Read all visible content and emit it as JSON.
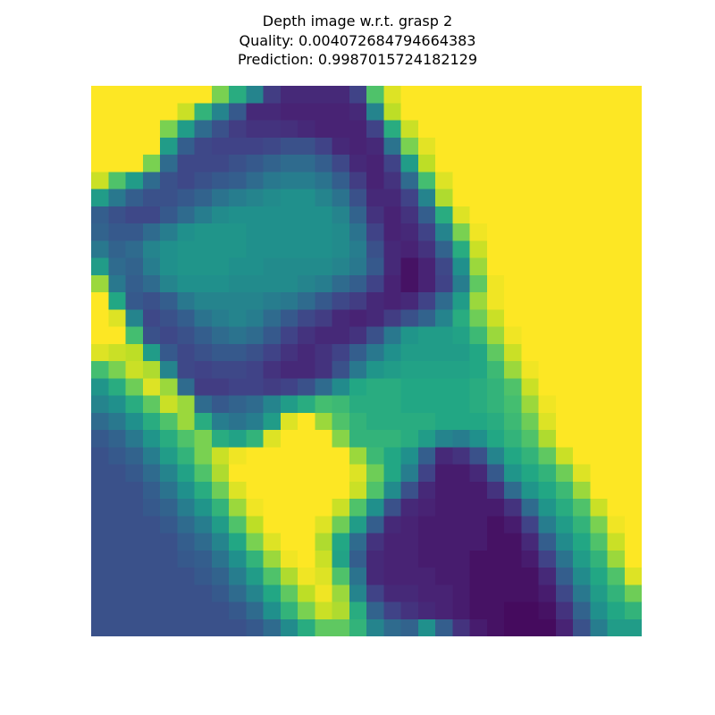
{
  "chart_data": {
    "type": "heatmap",
    "title_lines": [
      "Depth image w.r.t. grasp 2",
      "Quality: 0.004072684794664383",
      "Prediction: 0.9987015724182129"
    ],
    "axes": "off",
    "colormap": "viridis",
    "rows": 32,
    "cols": 32,
    "value_range": [
      0,
      1
    ],
    "grid": [
      [
        1.0,
        1.0,
        1.0,
        1.0,
        1.0,
        1.0,
        1.0,
        0.8,
        0.62,
        0.45,
        0.18,
        0.12,
        0.12,
        0.12,
        0.12,
        0.2,
        0.72,
        0.95,
        1.0,
        1.0,
        1.0,
        1.0,
        1.0,
        1.0,
        1.0,
        1.0,
        1.0,
        1.0,
        1.0,
        1.0,
        1.0,
        1.0
      ],
      [
        1.0,
        1.0,
        1.0,
        1.0,
        1.0,
        0.92,
        0.65,
        0.45,
        0.28,
        0.12,
        0.12,
        0.1,
        0.1,
        0.1,
        0.1,
        0.12,
        0.45,
        0.9,
        1.0,
        1.0,
        1.0,
        1.0,
        1.0,
        1.0,
        1.0,
        1.0,
        1.0,
        1.0,
        1.0,
        1.0,
        1.0,
        1.0
      ],
      [
        1.0,
        1.0,
        1.0,
        1.0,
        0.8,
        0.55,
        0.35,
        0.25,
        0.18,
        0.15,
        0.15,
        0.14,
        0.12,
        0.1,
        0.1,
        0.1,
        0.2,
        0.62,
        0.92,
        1.0,
        1.0,
        1.0,
        1.0,
        1.0,
        1.0,
        1.0,
        1.0,
        1.0,
        1.0,
        1.0,
        1.0,
        1.0
      ],
      [
        1.0,
        1.0,
        1.0,
        1.0,
        0.55,
        0.3,
        0.22,
        0.2,
        0.2,
        0.2,
        0.22,
        0.25,
        0.25,
        0.2,
        0.12,
        0.1,
        0.12,
        0.38,
        0.8,
        0.96,
        1.0,
        1.0,
        1.0,
        1.0,
        1.0,
        1.0,
        1.0,
        1.0,
        1.0,
        1.0,
        1.0,
        1.0
      ],
      [
        1.0,
        1.0,
        1.0,
        0.8,
        0.35,
        0.22,
        0.22,
        0.22,
        0.25,
        0.28,
        0.32,
        0.35,
        0.35,
        0.3,
        0.22,
        0.12,
        0.1,
        0.2,
        0.55,
        0.9,
        1.0,
        1.0,
        1.0,
        1.0,
        1.0,
        1.0,
        1.0,
        1.0,
        1.0,
        1.0,
        1.0,
        1.0
      ],
      [
        0.92,
        0.72,
        0.55,
        0.35,
        0.25,
        0.22,
        0.25,
        0.28,
        0.3,
        0.35,
        0.4,
        0.42,
        0.42,
        0.38,
        0.3,
        0.18,
        0.1,
        0.15,
        0.35,
        0.7,
        0.95,
        1.0,
        1.0,
        1.0,
        1.0,
        1.0,
        1.0,
        1.0,
        1.0,
        1.0,
        1.0,
        1.0
      ],
      [
        0.55,
        0.4,
        0.3,
        0.25,
        0.25,
        0.28,
        0.32,
        0.38,
        0.42,
        0.45,
        0.48,
        0.5,
        0.5,
        0.45,
        0.38,
        0.25,
        0.12,
        0.12,
        0.2,
        0.45,
        0.88,
        1.0,
        1.0,
        1.0,
        1.0,
        1.0,
        1.0,
        1.0,
        1.0,
        1.0,
        1.0,
        1.0
      ],
      [
        0.3,
        0.25,
        0.22,
        0.22,
        0.28,
        0.35,
        0.42,
        0.48,
        0.5,
        0.5,
        0.5,
        0.5,
        0.5,
        0.5,
        0.45,
        0.32,
        0.15,
        0.1,
        0.15,
        0.3,
        0.62,
        0.95,
        1.0,
        1.0,
        1.0,
        1.0,
        1.0,
        1.0,
        1.0,
        1.0,
        1.0,
        1.0
      ],
      [
        0.32,
        0.28,
        0.28,
        0.35,
        0.42,
        0.5,
        0.52,
        0.52,
        0.52,
        0.5,
        0.5,
        0.5,
        0.5,
        0.5,
        0.48,
        0.38,
        0.2,
        0.1,
        0.12,
        0.2,
        0.45,
        0.8,
        0.98,
        1.0,
        1.0,
        1.0,
        1.0,
        1.0,
        1.0,
        1.0,
        1.0,
        1.0
      ],
      [
        0.4,
        0.32,
        0.35,
        0.45,
        0.5,
        0.52,
        0.52,
        0.52,
        0.52,
        0.5,
        0.5,
        0.5,
        0.5,
        0.5,
        0.48,
        0.42,
        0.25,
        0.12,
        0.1,
        0.15,
        0.32,
        0.62,
        0.92,
        1.0,
        1.0,
        1.0,
        1.0,
        1.0,
        1.0,
        1.0,
        1.0,
        1.0
      ],
      [
        0.55,
        0.35,
        0.32,
        0.42,
        0.5,
        0.52,
        0.52,
        0.52,
        0.5,
        0.5,
        0.48,
        0.48,
        0.48,
        0.48,
        0.45,
        0.4,
        0.28,
        0.12,
        0.05,
        0.1,
        0.22,
        0.5,
        0.85,
        1.0,
        1.0,
        1.0,
        1.0,
        1.0,
        1.0,
        1.0,
        1.0,
        1.0
      ],
      [
        0.85,
        0.4,
        0.3,
        0.35,
        0.45,
        0.5,
        0.5,
        0.5,
        0.48,
        0.48,
        0.48,
        0.48,
        0.45,
        0.42,
        0.35,
        0.3,
        0.2,
        0.1,
        0.05,
        0.1,
        0.2,
        0.42,
        0.75,
        0.98,
        1.0,
        1.0,
        1.0,
        1.0,
        1.0,
        1.0,
        1.0,
        1.0
      ],
      [
        1.0,
        0.6,
        0.28,
        0.25,
        0.3,
        0.4,
        0.45,
        0.45,
        0.45,
        0.45,
        0.42,
        0.4,
        0.35,
        0.28,
        0.22,
        0.18,
        0.12,
        0.1,
        0.12,
        0.2,
        0.35,
        0.55,
        0.85,
        0.98,
        1.0,
        1.0,
        1.0,
        1.0,
        1.0,
        1.0,
        1.0,
        1.0
      ],
      [
        1.0,
        0.95,
        0.45,
        0.22,
        0.25,
        0.3,
        0.38,
        0.42,
        0.45,
        0.42,
        0.35,
        0.28,
        0.22,
        0.18,
        0.12,
        0.1,
        0.12,
        0.18,
        0.25,
        0.32,
        0.45,
        0.62,
        0.78,
        0.92,
        1.0,
        1.0,
        1.0,
        1.0,
        1.0,
        1.0,
        1.0,
        1.0
      ],
      [
        1.0,
        1.0,
        0.7,
        0.25,
        0.22,
        0.25,
        0.3,
        0.35,
        0.38,
        0.35,
        0.28,
        0.2,
        0.15,
        0.12,
        0.12,
        0.15,
        0.25,
        0.4,
        0.52,
        0.55,
        0.55,
        0.58,
        0.68,
        0.85,
        0.98,
        1.0,
        1.0,
        1.0,
        1.0,
        1.0,
        1.0,
        1.0
      ],
      [
        0.95,
        0.92,
        0.9,
        0.55,
        0.28,
        0.22,
        0.25,
        0.28,
        0.28,
        0.25,
        0.2,
        0.15,
        0.12,
        0.15,
        0.2,
        0.3,
        0.4,
        0.5,
        0.55,
        0.55,
        0.55,
        0.55,
        0.6,
        0.75,
        0.92,
        1.0,
        1.0,
        1.0,
        1.0,
        1.0,
        1.0,
        1.0
      ],
      [
        0.7,
        0.8,
        0.92,
        0.88,
        0.45,
        0.22,
        0.2,
        0.22,
        0.22,
        0.2,
        0.15,
        0.12,
        0.12,
        0.15,
        0.25,
        0.4,
        0.52,
        0.55,
        0.58,
        0.58,
        0.58,
        0.58,
        0.6,
        0.68,
        0.85,
        0.98,
        1.0,
        1.0,
        1.0,
        1.0,
        1.0,
        1.0
      ],
      [
        0.52,
        0.62,
        0.78,
        0.95,
        0.85,
        0.35,
        0.18,
        0.18,
        0.2,
        0.2,
        0.18,
        0.2,
        0.25,
        0.35,
        0.48,
        0.6,
        0.62,
        0.62,
        0.6,
        0.6,
        0.6,
        0.6,
        0.62,
        0.65,
        0.72,
        0.92,
        1.0,
        1.0,
        1.0,
        1.0,
        1.0,
        1.0
      ],
      [
        0.45,
        0.5,
        0.62,
        0.75,
        0.92,
        0.85,
        0.35,
        0.28,
        0.32,
        0.35,
        0.45,
        0.55,
        0.62,
        0.7,
        0.68,
        0.62,
        0.62,
        0.62,
        0.6,
        0.6,
        0.6,
        0.6,
        0.62,
        0.65,
        0.7,
        0.85,
        0.98,
        1.0,
        1.0,
        1.0,
        1.0,
        1.0
      ],
      [
        0.35,
        0.4,
        0.5,
        0.62,
        0.72,
        0.85,
        0.62,
        0.42,
        0.38,
        0.42,
        0.55,
        0.95,
        1.0,
        0.85,
        0.72,
        0.65,
        0.62,
        0.62,
        0.62,
        0.62,
        0.6,
        0.6,
        0.6,
        0.62,
        0.68,
        0.78,
        0.95,
        1.0,
        1.0,
        1.0,
        1.0,
        1.0
      ],
      [
        0.28,
        0.32,
        0.4,
        0.52,
        0.62,
        0.72,
        0.8,
        0.62,
        0.58,
        0.65,
        0.95,
        1.0,
        1.0,
        1.0,
        0.82,
        0.65,
        0.65,
        0.65,
        0.62,
        0.55,
        0.45,
        0.42,
        0.5,
        0.6,
        0.65,
        0.72,
        0.88,
        1.0,
        1.0,
        1.0,
        1.0,
        1.0
      ],
      [
        0.25,
        0.28,
        0.32,
        0.42,
        0.55,
        0.65,
        0.8,
        0.92,
        0.98,
        1.0,
        1.0,
        1.0,
        1.0,
        1.0,
        1.0,
        0.85,
        0.68,
        0.6,
        0.5,
        0.3,
        0.12,
        0.15,
        0.25,
        0.45,
        0.6,
        0.65,
        0.75,
        0.92,
        1.0,
        1.0,
        1.0,
        1.0
      ],
      [
        0.25,
        0.25,
        0.28,
        0.35,
        0.45,
        0.58,
        0.72,
        0.88,
        1.0,
        1.0,
        1.0,
        1.0,
        1.0,
        1.0,
        1.0,
        0.95,
        0.78,
        0.6,
        0.42,
        0.2,
        0.08,
        0.08,
        0.12,
        0.28,
        0.52,
        0.6,
        0.65,
        0.78,
        0.95,
        1.0,
        1.0,
        1.0
      ],
      [
        0.25,
        0.25,
        0.25,
        0.3,
        0.38,
        0.5,
        0.62,
        0.78,
        0.95,
        1.0,
        1.0,
        1.0,
        1.0,
        1.0,
        1.0,
        0.92,
        0.72,
        0.48,
        0.25,
        0.12,
        0.08,
        0.08,
        0.08,
        0.15,
        0.35,
        0.52,
        0.6,
        0.68,
        0.85,
        1.0,
        1.0,
        1.0
      ],
      [
        0.25,
        0.25,
        0.25,
        0.28,
        0.32,
        0.42,
        0.52,
        0.65,
        0.85,
        0.98,
        1.0,
        1.0,
        1.0,
        1.0,
        0.92,
        0.72,
        0.5,
        0.25,
        0.12,
        0.1,
        0.08,
        0.08,
        0.08,
        0.08,
        0.15,
        0.35,
        0.52,
        0.62,
        0.72,
        0.92,
        1.0,
        1.0
      ],
      [
        0.25,
        0.25,
        0.25,
        0.25,
        0.28,
        0.35,
        0.42,
        0.55,
        0.72,
        0.9,
        1.0,
        1.0,
        1.0,
        0.95,
        0.78,
        0.55,
        0.3,
        0.12,
        0.1,
        0.08,
        0.08,
        0.08,
        0.08,
        0.05,
        0.08,
        0.2,
        0.42,
        0.55,
        0.65,
        0.8,
        0.98,
        1.0
      ],
      [
        0.25,
        0.25,
        0.25,
        0.25,
        0.25,
        0.3,
        0.35,
        0.45,
        0.6,
        0.8,
        0.95,
        1.0,
        1.0,
        0.88,
        0.6,
        0.35,
        0.15,
        0.1,
        0.1,
        0.08,
        0.08,
        0.08,
        0.08,
        0.05,
        0.05,
        0.12,
        0.3,
        0.48,
        0.6,
        0.72,
        0.92,
        1.0
      ],
      [
        0.25,
        0.25,
        0.25,
        0.25,
        0.25,
        0.28,
        0.3,
        0.38,
        0.5,
        0.65,
        0.85,
        0.98,
        1.0,
        0.92,
        0.58,
        0.3,
        0.12,
        0.1,
        0.1,
        0.08,
        0.08,
        0.08,
        0.05,
        0.05,
        0.05,
        0.08,
        0.2,
        0.38,
        0.55,
        0.65,
        0.85,
        1.0
      ],
      [
        0.25,
        0.25,
        0.25,
        0.25,
        0.25,
        0.25,
        0.28,
        0.32,
        0.42,
        0.55,
        0.72,
        0.88,
        0.98,
        0.95,
        0.72,
        0.38,
        0.12,
        0.1,
        0.1,
        0.1,
        0.08,
        0.08,
        0.05,
        0.05,
        0.05,
        0.05,
        0.12,
        0.3,
        0.48,
        0.6,
        0.72,
        0.95
      ],
      [
        0.25,
        0.25,
        0.25,
        0.25,
        0.25,
        0.25,
        0.25,
        0.28,
        0.35,
        0.45,
        0.6,
        0.75,
        0.9,
        0.98,
        0.85,
        0.45,
        0.2,
        0.12,
        0.12,
        0.1,
        0.1,
        0.08,
        0.05,
        0.05,
        0.05,
        0.05,
        0.08,
        0.22,
        0.4,
        0.55,
        0.65,
        0.78
      ],
      [
        0.25,
        0.25,
        0.25,
        0.25,
        0.25,
        0.25,
        0.25,
        0.25,
        0.28,
        0.35,
        0.5,
        0.65,
        0.8,
        0.92,
        0.88,
        0.62,
        0.32,
        0.2,
        0.15,
        0.12,
        0.1,
        0.08,
        0.05,
        0.05,
        0.03,
        0.03,
        0.05,
        0.15,
        0.32,
        0.5,
        0.6,
        0.65
      ],
      [
        0.25,
        0.25,
        0.25,
        0.25,
        0.25,
        0.25,
        0.25,
        0.25,
        0.25,
        0.28,
        0.35,
        0.48,
        0.62,
        0.75,
        0.75,
        0.65,
        0.45,
        0.35,
        0.32,
        0.5,
        0.3,
        0.15,
        0.08,
        0.05,
        0.03,
        0.03,
        0.03,
        0.1,
        0.25,
        0.42,
        0.55,
        0.55
      ]
    ]
  }
}
